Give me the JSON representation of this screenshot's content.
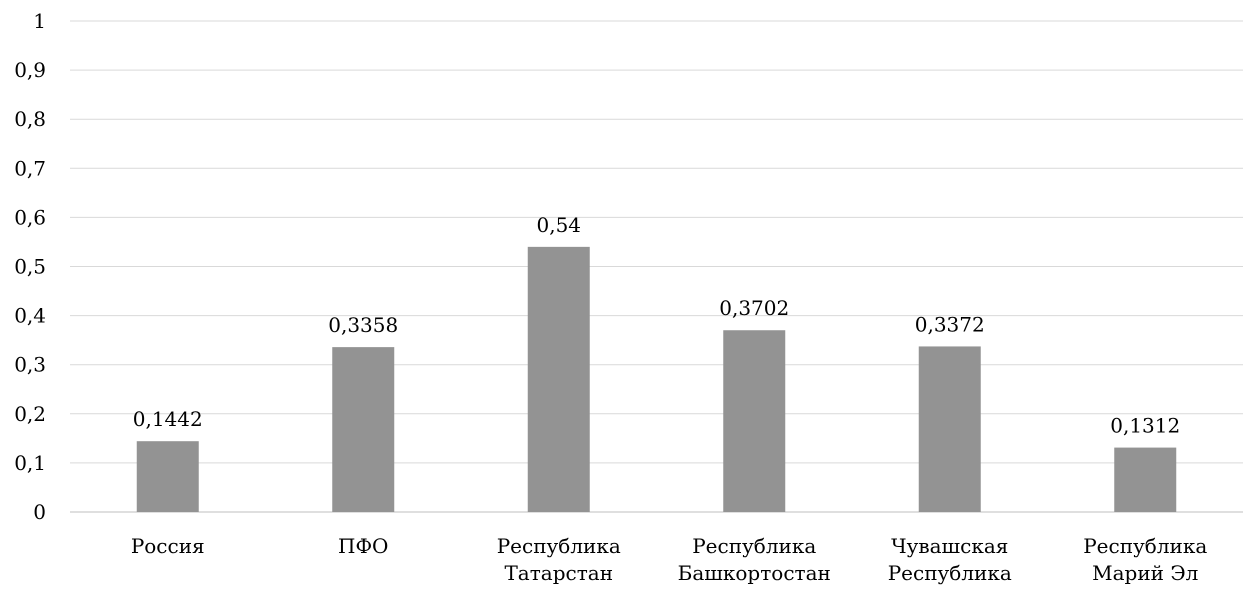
{
  "chart_data": {
    "type": "bar",
    "categories": [
      [
        "Россия"
      ],
      [
        "ПФО"
      ],
      [
        "Республика",
        "Татарстан"
      ],
      [
        "Республика",
        "Башкортостан"
      ],
      [
        "Чувашская",
        "Республика"
      ],
      [
        "Республика",
        "Марий Эл"
      ]
    ],
    "values": [
      0.1442,
      0.3358,
      0.54,
      0.3702,
      0.3372,
      0.1312
    ],
    "value_labels": [
      "0,1442",
      "0,3358",
      "0,54",
      "0,3702",
      "0,3372",
      "0,1312"
    ],
    "y_ticks": [
      "0",
      "0,1",
      "0,2",
      "0,3",
      "0,4",
      "0,5",
      "0,6",
      "0,7",
      "0,8",
      "0,9",
      "1"
    ],
    "ylim": [
      0,
      1
    ],
    "grid": true,
    "legend": "none",
    "bar_color": "#939393"
  }
}
